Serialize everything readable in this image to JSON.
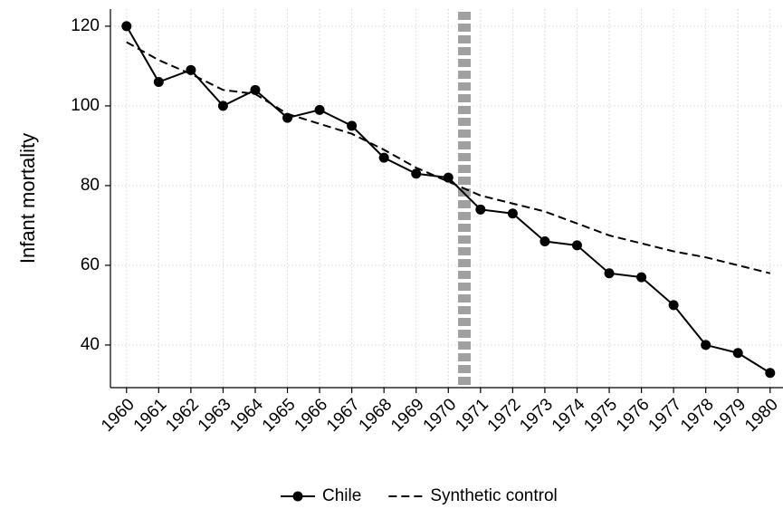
{
  "chart_data": {
    "type": "line",
    "y_label": "Infant mortality",
    "x": [
      1960,
      1961,
      1962,
      1963,
      1964,
      1965,
      1966,
      1967,
      1968,
      1969,
      1970,
      1971,
      1972,
      1973,
      1974,
      1975,
      1976,
      1977,
      1978,
      1979,
      1980
    ],
    "series": [
      {
        "name": "Chile",
        "color": "#000000",
        "style": "solid",
        "markers": true,
        "values": [
          120,
          106,
          109,
          100,
          104,
          97,
          99,
          95,
          87,
          83,
          82,
          74,
          73,
          66,
          65,
          58,
          57,
          50,
          40,
          38,
          33
        ]
      },
      {
        "name": "Synthetic control",
        "color": "#000000",
        "style": "dashed",
        "markers": false,
        "values": [
          116,
          111.5,
          108,
          104,
          103,
          98,
          95.5,
          93,
          89,
          84.5,
          81,
          77.5,
          75.5,
          73.5,
          70.5,
          67.5,
          65.5,
          63.5,
          62,
          60,
          58
        ]
      }
    ],
    "vline": {
      "value": 1970.5,
      "color": "#a0a0a0"
    },
    "xlim": [
      1959.5,
      1980.4
    ],
    "ylim": [
      29.3,
      124.3
    ],
    "xticks": [
      1960,
      1961,
      1962,
      1963,
      1964,
      1965,
      1966,
      1967,
      1968,
      1969,
      1970,
      1971,
      1972,
      1973,
      1974,
      1975,
      1976,
      1977,
      1978,
      1979,
      1980
    ],
    "yticks": [
      40,
      60,
      80,
      100,
      120
    ],
    "grid": true,
    "legend": "bottom"
  }
}
